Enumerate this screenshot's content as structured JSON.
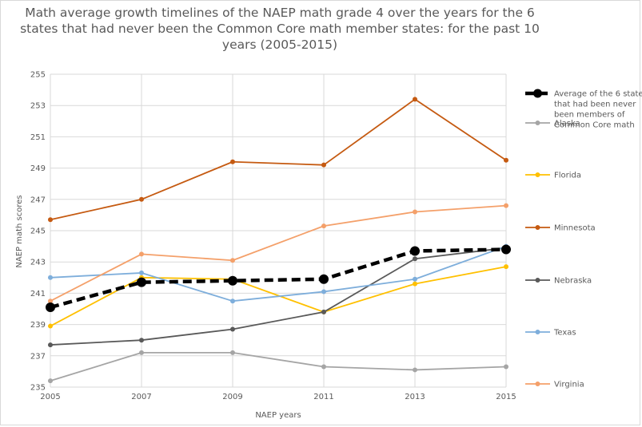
{
  "chart_data": {
    "type": "line",
    "title": "Math average growth timelines of the NAEP math  grade 4 over the years for the 6 states that had never been the Common Core math member states: for the past 10 years (2005-2015)",
    "xlabel": "NAEP years",
    "ylabel": "NAEP math scores",
    "x": [
      2005,
      2007,
      2009,
      2011,
      2013,
      2015
    ],
    "ylim": [
      235,
      255
    ],
    "yticks": [
      235,
      237,
      239,
      241,
      243,
      245,
      247,
      249,
      251,
      253,
      255
    ],
    "grid": "horizontal",
    "legend_position": "right",
    "series": [
      {
        "name": "Average of the 6 states that had been never been members of Common Core math",
        "legend_lines": [
          "Average of the 6 states",
          "that had been never",
          "been members of",
          "Common Core math"
        ],
        "values": [
          240.1,
          241.7,
          241.8,
          241.9,
          243.7,
          243.8
        ],
        "color": "#000000",
        "style": "dashed-bold"
      },
      {
        "name": "Alaska",
        "values": [
          235.4,
          237.2,
          237.2,
          236.3,
          236.1,
          236.3
        ],
        "color": "#a5a5a5"
      },
      {
        "name": "Florida",
        "values": [
          238.9,
          242.0,
          241.9,
          239.8,
          241.6,
          242.7
        ],
        "color": "#ffc000"
      },
      {
        "name": "Minnesota",
        "values": [
          245.7,
          247.0,
          249.4,
          249.2,
          253.4,
          249.5
        ],
        "color": "#c55a11"
      },
      {
        "name": "Nebraska",
        "values": [
          237.7,
          238.0,
          238.7,
          239.8,
          243.2,
          243.9
        ],
        "color": "#595959"
      },
      {
        "name": "Texas",
        "values": [
          242.0,
          242.3,
          240.5,
          241.1,
          241.9,
          244.0
        ],
        "color": "#7eaedb"
      },
      {
        "name": "Virginia",
        "values": [
          240.5,
          243.5,
          243.1,
          245.3,
          246.2,
          246.6
        ],
        "color": "#f4a06a"
      }
    ]
  }
}
